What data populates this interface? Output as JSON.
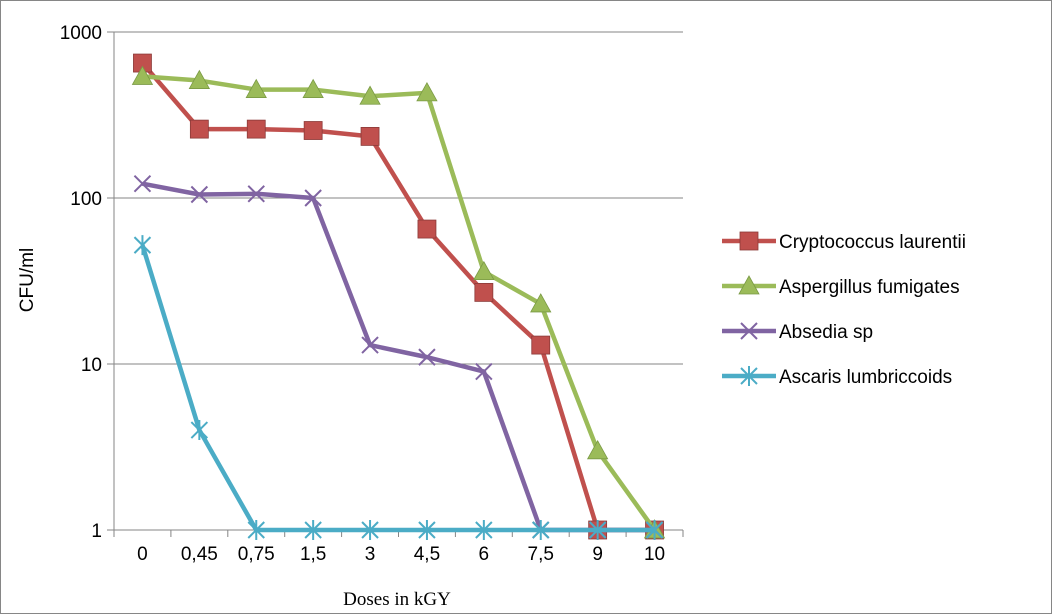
{
  "chart_data": {
    "type": "line",
    "title": "",
    "xlabel": "Doses in kGY",
    "ylabel": "CFU/ml",
    "yscale": "log",
    "ylim": [
      1,
      1000
    ],
    "yticks": [
      "1",
      "10",
      "100",
      "1000"
    ],
    "categories": [
      "0",
      "0,45",
      "0,75",
      "1,5",
      "3",
      "4,5",
      "6",
      "7,5",
      "9",
      "10"
    ],
    "grid": "horizontal major gridlines",
    "legend_position": "right",
    "series": [
      {
        "name": "Cryptococcus laurentii",
        "color": "#C0504D",
        "marker": "square",
        "values": [
          650,
          260,
          260,
          255,
          235,
          65,
          27,
          13,
          1,
          1
        ]
      },
      {
        "name": "Aspergillus fumigates",
        "color": "#9BBB59",
        "marker": "triangle",
        "values": [
          540,
          510,
          450,
          450,
          410,
          430,
          36,
          23,
          3,
          1
        ]
      },
      {
        "name": "Absedia sp",
        "color": "#8064A2",
        "marker": "x",
        "values": [
          122,
          105,
          106,
          100,
          13,
          11,
          9,
          1,
          1,
          1
        ]
      },
      {
        "name": "Ascaris lumbriccoids",
        "color": "#4BACC6",
        "marker": "star",
        "values": [
          52,
          4,
          1,
          1,
          1,
          1,
          1,
          1,
          1,
          1
        ]
      }
    ]
  }
}
